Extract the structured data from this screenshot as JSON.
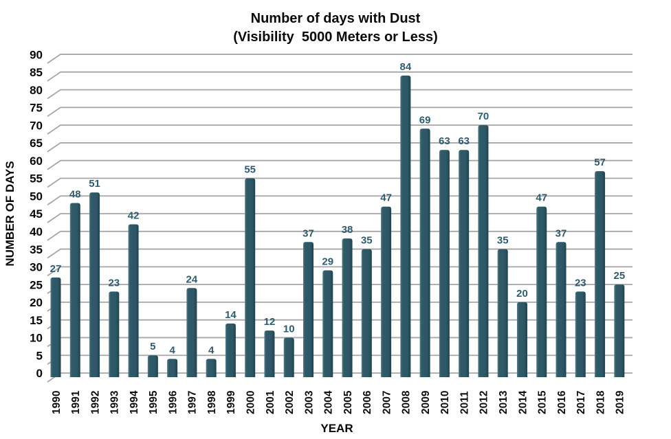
{
  "chart_data": {
    "type": "bar",
    "title": "Number of days with Dust",
    "subtitle": "(Visibility  5000 Meters or Less)",
    "xlabel": "YEAR",
    "ylabel": "NUMBER OF DAYS",
    "categories": [
      "1990",
      "1991",
      "1992",
      "1993",
      "1994",
      "1995",
      "1996",
      "1997",
      "1998",
      "1999",
      "2000",
      "2001",
      "2002",
      "2003",
      "2004",
      "2005",
      "2006",
      "2007",
      "2008",
      "2009",
      "2010",
      "2011",
      "2012",
      "2013",
      "2014",
      "2015",
      "2016",
      "2017",
      "2018",
      "2019"
    ],
    "values": [
      27,
      48,
      51,
      23,
      42,
      5,
      4,
      24,
      4,
      14,
      55,
      12,
      10,
      37,
      29,
      38,
      35,
      47,
      84,
      69,
      63,
      63,
      70,
      35,
      20,
      47,
      37,
      23,
      57,
      25
    ],
    "ylim": [
      0,
      90
    ],
    "ytick_step": 5,
    "grid": true,
    "legend": "none",
    "bar_labels_shown": true,
    "colors": {
      "bar_highlight": "#527A87",
      "bar_main": "#315A69",
      "bar_mid": "#2E5766",
      "bar_shadow": "#1E4251",
      "value_label": "#2E5B70",
      "grid_line": "#A6A6A6",
      "grid_lead_in": "#B3B3B3",
      "axis_text": "#060606",
      "background": "#FFFFFF"
    }
  }
}
